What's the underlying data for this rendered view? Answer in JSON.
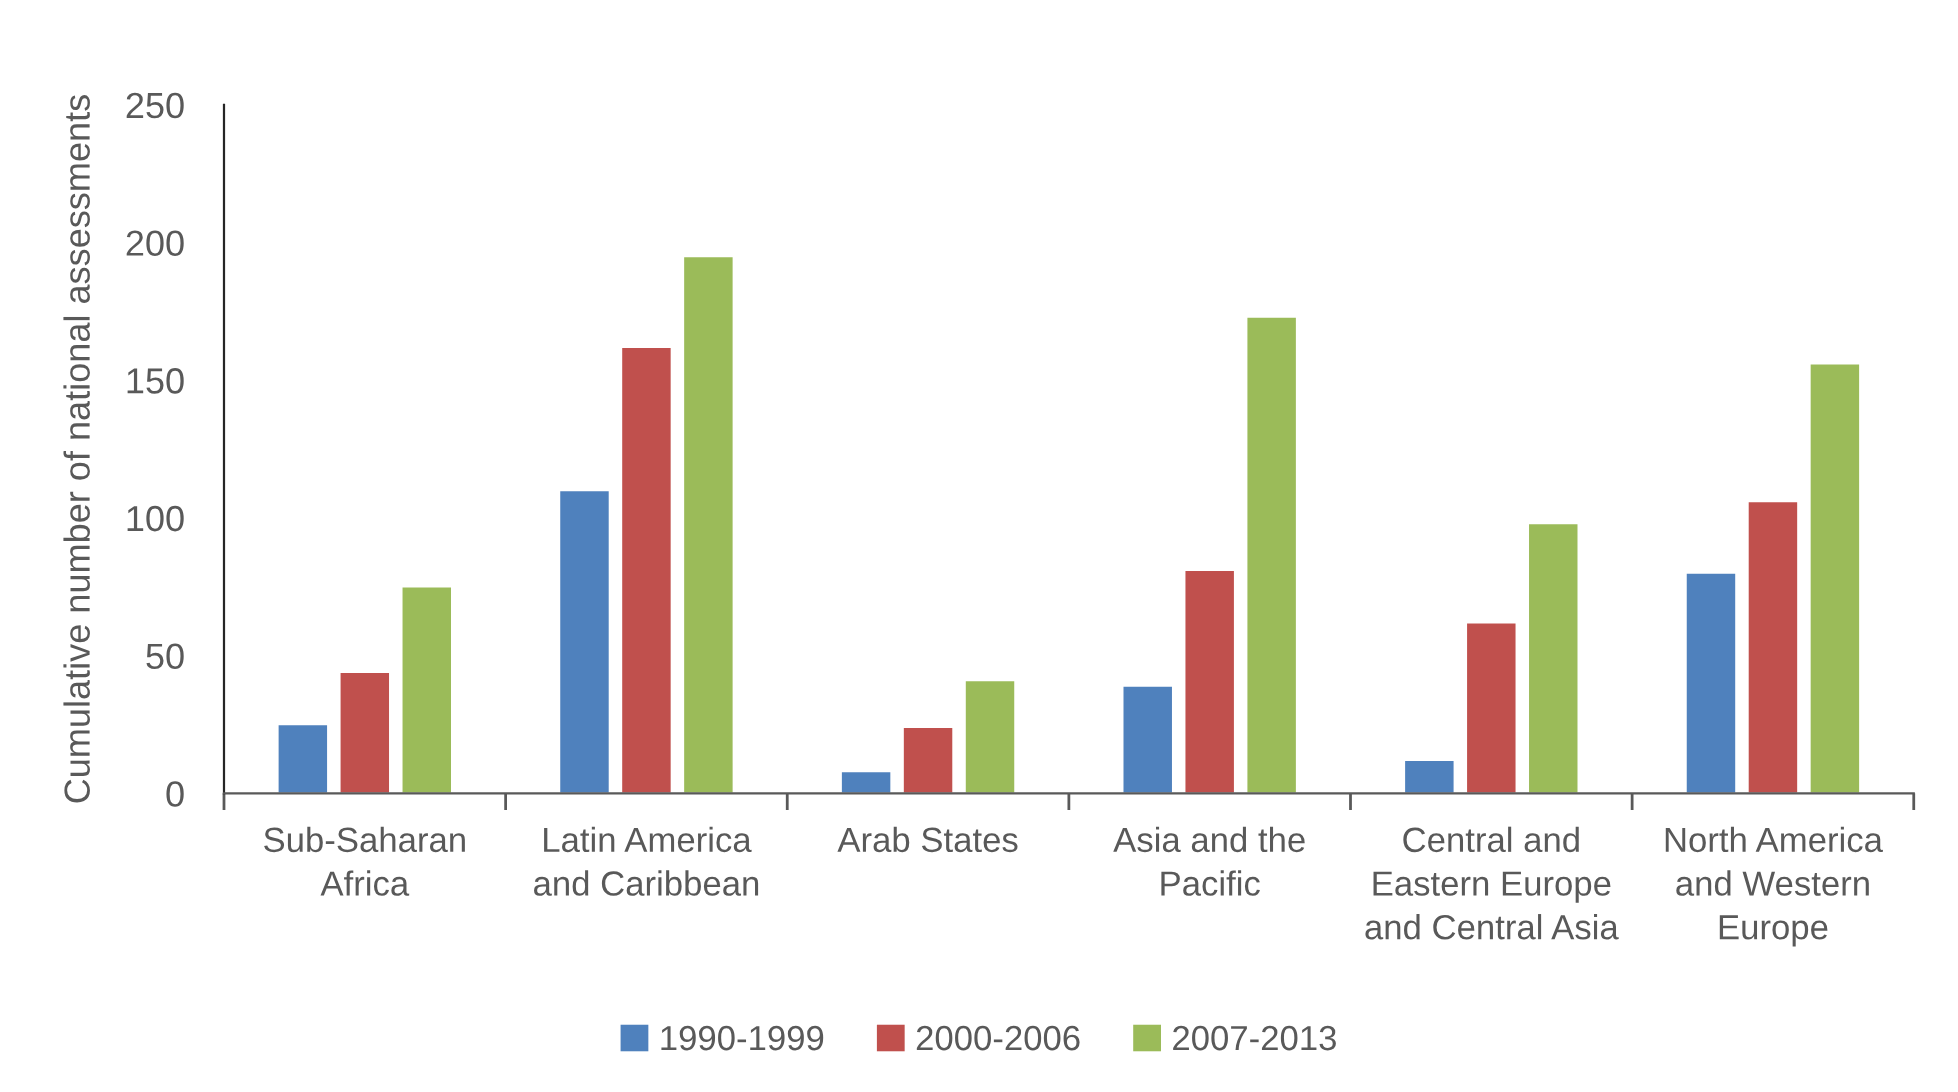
{
  "chart_data": {
    "type": "bar",
    "ylabel": "Cumulative number of national assessments",
    "categories": [
      "Sub-Saharan\nAfrica",
      "Latin America\nand Caribbean",
      "Arab States",
      "Asia and the\nPacific",
      "Central and\nEastern Europe\nand Central Asia",
      "North America\nand Western\nEurope"
    ],
    "series": [
      {
        "name": "1990-1999",
        "color": "#4f81bd",
        "values": [
          25,
          110,
          8,
          39,
          12,
          80
        ]
      },
      {
        "name": "2000-2006",
        "color": "#c0504d",
        "values": [
          44,
          162,
          24,
          81,
          62,
          106
        ]
      },
      {
        "name": "2007-2013",
        "color": "#9bbb59",
        "values": [
          75,
          195,
          41,
          173,
          98,
          156
        ]
      }
    ],
    "ylim": [
      0,
      250
    ],
    "yticks": [
      0,
      50,
      100,
      150,
      200,
      250
    ],
    "grid": false,
    "legend": "bottom"
  }
}
